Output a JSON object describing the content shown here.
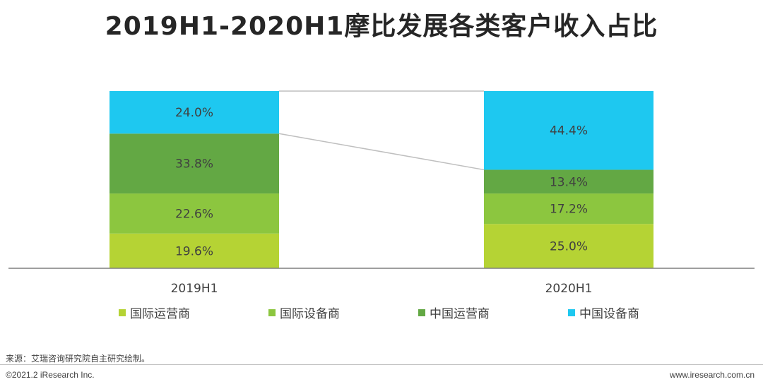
{
  "title": "2019H1-2020H1摩比发展各类客户收入占比",
  "chart_data": {
    "type": "bar",
    "stacked": true,
    "percent": true,
    "title": "2019H1-2020H1摩比发展各类客户收入占比",
    "categories": [
      "2019H1",
      "2020H1"
    ],
    "series": [
      {
        "name": "国际运营商",
        "values": [
          19.6,
          25.0
        ],
        "labels": [
          "19.6%",
          "25.0%"
        ],
        "color": "#b5d334"
      },
      {
        "name": "国际设备商",
        "values": [
          22.6,
          17.2
        ],
        "labels": [
          "22.6%",
          "17.2%"
        ],
        "color": "#8cc63f"
      },
      {
        "name": "中国运营商",
        "values": [
          33.8,
          13.4
        ],
        "labels": [
          "33.8%",
          "13.4%"
        ],
        "color": "#63a844"
      },
      {
        "name": "中国设备商",
        "values": [
          24.0,
          44.4
        ],
        "labels": [
          "24.0%",
          "44.4%"
        ],
        "color": "#1ec8f0"
      }
    ],
    "ylim": [
      0,
      100
    ],
    "legend_position": "bottom"
  },
  "source": "来源：艾瑞咨询研究院自主研究绘制。",
  "copyright": "©2021.2 iResearch Inc.",
  "website": "www.iresearch.com.cn"
}
